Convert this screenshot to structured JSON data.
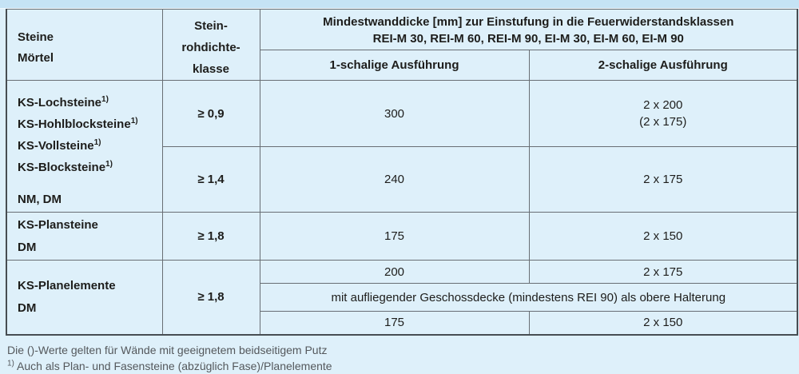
{
  "colors": {
    "page_background": "#def0fa",
    "top_strip": "#c5e3f5",
    "grid_line": "#686e74",
    "heavy_line": "#0d0d0d",
    "outer_line": "#474d52",
    "text": "#1d1d1b",
    "footnote_text": "#54585c"
  },
  "table": {
    "headers": {
      "stones_mortar": "Steine\nMörtel",
      "density_class": "Stein-\nrohdichte-\nklasse",
      "min_wall_thickness": "Mindestwanddicke [mm] zur Einstufung in die Feuerwiderstandsklassen\nREI-M 30, REI-M 60, REI-M 90, EI-M 30, EI-M 60, EI-M 90",
      "single_leaf": "1-schalige Ausführung",
      "double_leaf": "2-schalige Ausführung"
    },
    "group1": {
      "stones": [
        "KS-Lochsteine",
        "KS-Hohlblocksteine",
        "KS-Vollsteine",
        "KS-Blocksteine"
      ],
      "footnote_marker": "1)",
      "mortar": "NM, DM",
      "row_09": {
        "density": "≥ 0,9",
        "single": "300",
        "double": "2 x 200\n(2 x 175)"
      },
      "row_14": {
        "density": "≥ 1,4",
        "single": "240",
        "double": "2 x 175"
      }
    },
    "group2": {
      "label": "KS-Plansteine\nDM",
      "density": "≥ 1,8",
      "single": "175",
      "double": "2 x 150"
    },
    "group3": {
      "label": "KS-Planelemente\nDM",
      "density": "≥ 1,8",
      "top_row": {
        "single": "200",
        "double": "2 x 175"
      },
      "support_note": "mit aufliegender Geschossdecke (mindestens REI 90) als obere Halterung",
      "bottom_row": {
        "single": "175",
        "double": "2 x 150"
      }
    }
  },
  "footnotes": {
    "putz_note": "Die ()-Werte gelten für Wände mit geeignetem beidseitigem Putz",
    "marker": "1)",
    "stone_note": "Auch als Plan- und Fasensteine (abzüglich Fase)/Planelemente"
  },
  "chart_data": {
    "type": "table",
    "title": "Mindestwanddicke [mm] zur Einstufung in die Feuerwiderstandsklassen REI-M 30, REI-M 60, REI-M 90, EI-M 30, EI-M 60, EI-M 90",
    "columns": [
      "Steine / Mörtel",
      "Stein-rohdichteklasse",
      "1-schalige Ausführung",
      "2-schalige Ausführung"
    ],
    "rows": [
      [
        "KS-Lochsteine1), KS-Hohlblocksteine1), KS-Vollsteine1), KS-Blocksteine1), NM, DM",
        "≥ 0,9",
        "300",
        "2 x 200 (2 x 175)"
      ],
      [
        "KS-Lochsteine1), KS-Hohlblocksteine1), KS-Vollsteine1), KS-Blocksteine1), NM, DM",
        "≥ 1,4",
        "240",
        "2 x 175"
      ],
      [
        "KS-Plansteine, DM",
        "≥ 1,8",
        "175",
        "2 x 150"
      ],
      [
        "KS-Planelemente, DM",
        "≥ 1,8",
        "200",
        "2 x 175"
      ],
      [
        "KS-Planelemente, DM",
        "≥ 1,8",
        "mit aufliegender Geschossdecke (mindestens REI 90) als obere Halterung",
        ""
      ],
      [
        "KS-Planelemente, DM",
        "≥ 1,8",
        "175",
        "2 x 150"
      ]
    ]
  }
}
